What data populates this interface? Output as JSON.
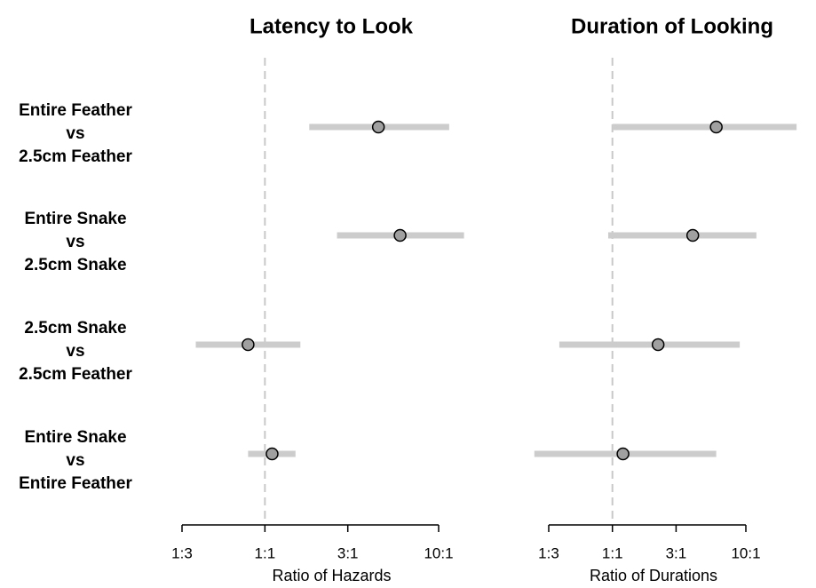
{
  "chart_data": [
    {
      "type": "forest",
      "title": "Latency to Look",
      "xlabel": "Ratio of Hazards",
      "x_scale": "log",
      "ticks": [
        {
          "value": 0.3333,
          "label": "1:3"
        },
        {
          "value": 1,
          "label": "1:1"
        },
        {
          "value": 3,
          "label": "3:1"
        },
        {
          "value": 10,
          "label": "10:1"
        }
      ],
      "reference_line": 1,
      "colors": {
        "interval": "#cccccc",
        "point_fill": "#a0a0a0",
        "point_stroke": "#000000",
        "reference": "#c8c8c8"
      },
      "rows": [
        {
          "label": [
            "Entire Feather",
            "vs",
            "2.5cm Feather"
          ],
          "estimate": 4.5,
          "lower": 1.8,
          "upper": 11.5
        },
        {
          "label": [
            "Entire Snake",
            "vs",
            "2.5cm Snake"
          ],
          "estimate": 6.0,
          "lower": 2.6,
          "upper": 14.0
        },
        {
          "label": [
            "2.5cm Snake",
            "vs",
            "2.5cm Feather"
          ],
          "estimate": 0.8,
          "lower": 0.4,
          "upper": 1.6
        },
        {
          "label": [
            "Entire Snake",
            "vs",
            "Entire Feather"
          ],
          "estimate": 1.1,
          "lower": 0.8,
          "upper": 1.5
        }
      ]
    },
    {
      "type": "forest",
      "title": "Duration of Looking",
      "xlabel": "Ratio of Durations",
      "x_scale": "log",
      "ticks": [
        {
          "value": 0.3333,
          "label": "1:3"
        },
        {
          "value": 1,
          "label": "1:1"
        },
        {
          "value": 3,
          "label": "3:1"
        },
        {
          "value": 10,
          "label": "10:1"
        }
      ],
      "reference_line": 1,
      "colors": {
        "interval": "#cccccc",
        "point_fill": "#a0a0a0",
        "point_stroke": "#000000",
        "reference": "#c8c8c8"
      },
      "rows": [
        {
          "label": [
            "Entire Feather",
            "vs",
            "2.5cm Feather"
          ],
          "estimate": 6.0,
          "lower": 1.0,
          "upper": 24.0
        },
        {
          "label": [
            "Entire Snake",
            "vs",
            "2.5cm Snake"
          ],
          "estimate": 4.0,
          "lower": 0.93,
          "upper": 12.0
        },
        {
          "label": [
            "2.5cm Snake",
            "vs",
            "2.5cm Feather"
          ],
          "estimate": 2.2,
          "lower": 0.4,
          "upper": 9.0
        },
        {
          "label": [
            "Entire Snake",
            "vs",
            "Entire Feather"
          ],
          "estimate": 1.2,
          "lower": 0.26,
          "upper": 6.0
        }
      ]
    }
  ]
}
